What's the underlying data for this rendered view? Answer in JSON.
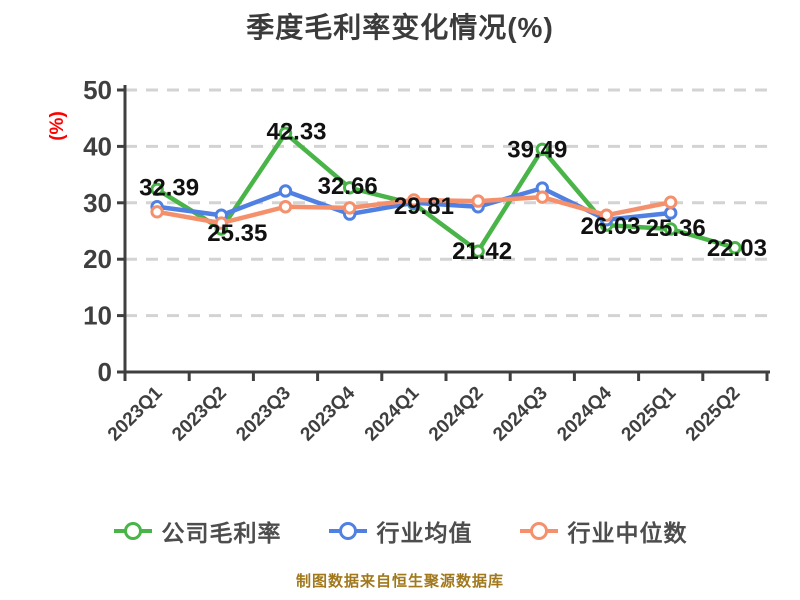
{
  "title": "季度毛利率变化情况(%)",
  "caption": "制图数据来自恒生聚源数据库",
  "colors": {
    "company": "#49b447",
    "industry_mean": "#4f80e2",
    "industry_median": "#f5906d",
    "axis": "#3f3f3f",
    "grid": "#d3d3d3",
    "data_label": "#111111",
    "y_name": "#ff0000",
    "title_text": "#3b3b3b",
    "legend_text": "#4d4d4d",
    "caption_text": "#a1791c"
  },
  "legend": {
    "items": [
      {
        "key": "company",
        "label": "公司毛利率",
        "color": "#49b447"
      },
      {
        "key": "industry-mean",
        "label": "行业均值",
        "color": "#4f80e2"
      },
      {
        "key": "industry-median",
        "label": "行业中位数",
        "color": "#f5906d"
      }
    ]
  },
  "chart_data": {
    "type": "line",
    "title": "季度毛利率变化情况(%)",
    "ylabel": "(%)",
    "xlabel": "",
    "ylim": [
      0,
      50
    ],
    "y_ticks": [
      0,
      10,
      20,
      30,
      40,
      50
    ],
    "grid": "horizontal-dashed",
    "legend_position": "bottom",
    "categories": [
      "2023Q1",
      "2023Q2",
      "2023Q3",
      "2023Q4",
      "2024Q1",
      "2024Q2",
      "2024Q3",
      "2024Q4",
      "2025Q1",
      "2025Q2"
    ],
    "series": [
      {
        "name": "公司毛利率",
        "key": "company",
        "color": "#49b447",
        "labeled": true,
        "values": [
          32.39,
          25.35,
          42.33,
          32.66,
          29.81,
          21.42,
          39.49,
          26.03,
          25.36,
          22.03
        ]
      },
      {
        "name": "行业均值",
        "key": "industry-mean",
        "color": "#4f80e2",
        "labeled": false,
        "values_estimated": true,
        "values": [
          29.3,
          27.8,
          32.1,
          28.0,
          30.0,
          29.3,
          32.6,
          27.0,
          28.2,
          null
        ]
      },
      {
        "name": "行业中位数",
        "key": "industry-median",
        "color": "#f5906d",
        "labeled": false,
        "values_estimated": true,
        "values": [
          28.4,
          26.4,
          29.3,
          29.1,
          30.5,
          30.3,
          31.0,
          27.8,
          30.1,
          null
        ]
      }
    ]
  }
}
